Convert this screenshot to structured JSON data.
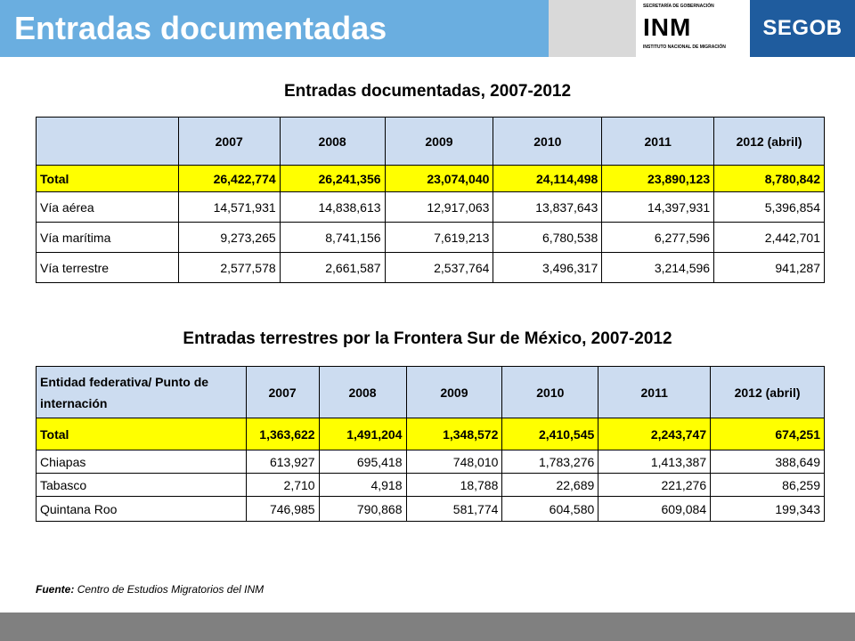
{
  "header": {
    "title": "Entradas documentadas",
    "logo_top": "SECRETARÍA DE GOBERNACIÓN",
    "logo_word": "INM",
    "logo_bottom": "INSTITUTO NACIONAL DE MIGRACIÓN",
    "brand": "SEGOB",
    "colors": {
      "title_bg": "#6aaee0",
      "brand_bg": "#1f5c9e",
      "gray": "#d9d9d9"
    }
  },
  "table1": {
    "title": "Entradas documentadas, 2007-2012",
    "corner": "",
    "columns": [
      "2007",
      "2008",
      "2009",
      "2010",
      "2011",
      "2012 (abril)"
    ],
    "rows": [
      {
        "label": "Total",
        "values": [
          "26,422,774",
          "26,241,356",
          "23,074,040",
          "24,114,498",
          "23,890,123",
          "8,780,842"
        ]
      },
      {
        "label": "Vía aérea",
        "values": [
          "14,571,931",
          "14,838,613",
          "12,917,063",
          "13,837,643",
          "14,397,931",
          "5,396,854"
        ]
      },
      {
        "label": "Vía marítima",
        "values": [
          "9,273,265",
          "8,741,156",
          "7,619,213",
          "6,780,538",
          "6,277,596",
          "2,442,701"
        ]
      },
      {
        "label": "Vía terrestre",
        "values": [
          "2,577,578",
          "2,661,587",
          "2,537,764",
          "3,496,317",
          "3,214,596",
          "941,287"
        ]
      }
    ]
  },
  "table2": {
    "title": "Entradas terrestres por la Frontera Sur de México, 2007-2012",
    "corner": "Entidad federativa/ Punto de internación",
    "columns": [
      "2007",
      "2008",
      "2009",
      "2010",
      "2011",
      "2012 (abril)"
    ],
    "rows": [
      {
        "label": "Total",
        "values": [
          "1,363,622",
          "1,491,204",
          "1,348,572",
          "2,410,545",
          "2,243,747",
          "674,251"
        ]
      },
      {
        "label": "Chiapas",
        "values": [
          "613,927",
          "695,418",
          "748,010",
          "1,783,276",
          "1,413,387",
          "388,649"
        ]
      },
      {
        "label": "Tabasco",
        "values": [
          "2,710",
          "4,918",
          "18,788",
          "22,689",
          "221,276",
          "86,259"
        ]
      },
      {
        "label": "Quintana Roo",
        "values": [
          "746,985",
          "790,868",
          "581,774",
          "604,580",
          "609,084",
          "199,343"
        ]
      }
    ]
  },
  "source": {
    "label": "Fuente:",
    "text": "Centro de Estudios Migratorios del INM"
  },
  "highlight_color": "#ffff00",
  "header_cell_color": "#ccdcf0"
}
